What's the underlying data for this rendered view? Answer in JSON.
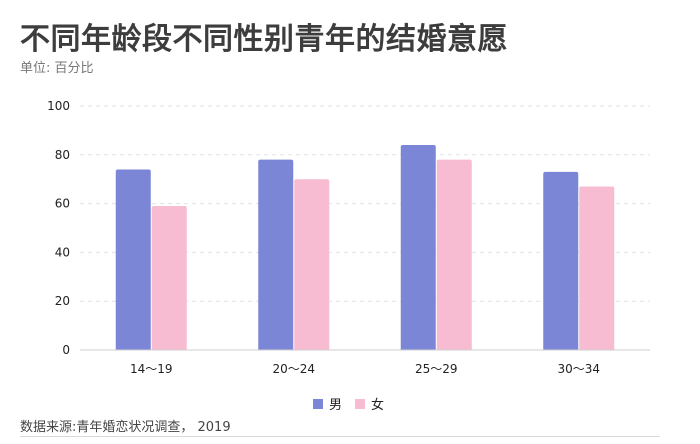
{
  "header": {
    "title": "不同年龄段不同性别青年的结婚意愿",
    "subtitle": "单位: 百分比"
  },
  "footer": {
    "source": "数据来源:青年婚恋状况调查， 2019"
  },
  "chart_data": {
    "type": "bar",
    "categories": [
      "14～19",
      "20～24",
      "25～29",
      "30～34"
    ],
    "series": [
      {
        "name": "男",
        "values": [
          74,
          78,
          84,
          73
        ],
        "color": "#7b86d6"
      },
      {
        "name": "女",
        "values": [
          59,
          70,
          78,
          67
        ],
        "color": "#f7bcd1"
      }
    ],
    "ylim": [
      0,
      100
    ],
    "yticks": [
      0,
      20,
      40,
      60,
      80,
      100
    ],
    "grid": true,
    "legend": "bottom-center"
  }
}
